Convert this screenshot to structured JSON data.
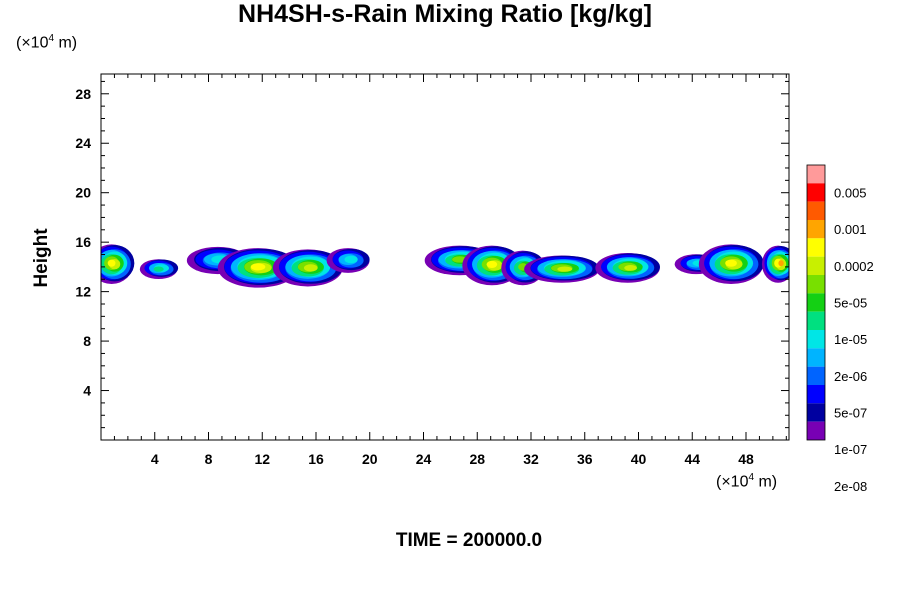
{
  "chart_data": {
    "type": "heatmap",
    "title": "NH4SH-s-Rain Mixing Ratio [kg/kg]",
    "ylabel": "Height",
    "x_unit": {
      "prefix": "(×10",
      "exp": "4",
      "suffix": " m)"
    },
    "y_unit": {
      "prefix": "(×10",
      "exp": "4",
      "suffix": " m)"
    },
    "xlim": [
      0,
      51.2
    ],
    "ylim": [
      0,
      29.6
    ],
    "x_ticks": [
      4,
      8,
      12,
      16,
      20,
      24,
      28,
      32,
      36,
      40,
      44,
      48
    ],
    "y_ticks": [
      4,
      8,
      12,
      16,
      20,
      24,
      28
    ],
    "colorbar": {
      "labels": [
        "0.005",
        "0.001",
        "0.0002",
        "5e-05",
        "1e-05",
        "2e-06",
        "5e-07",
        "1e-07",
        "2e-08"
      ],
      "colors": [
        "#ff9a9a",
        "#ff0000",
        "#ff5a00",
        "#ffa500",
        "#ffff00",
        "#c8f000",
        "#78e000",
        "#14d014",
        "#00e080",
        "#00e6e6",
        "#00b4ff",
        "#0064ff",
        "#0000ff",
        "#0000a0",
        "#7800b4"
      ]
    },
    "cloud_blobs": [
      {
        "x": 0.9,
        "y": 14.3,
        "rx": 1.6,
        "ry": 1.6,
        "level": 11
      },
      {
        "x": 4.4,
        "y": 13.9,
        "rx": 1.4,
        "ry": 0.8,
        "level": 7
      },
      {
        "x": 8.8,
        "y": 14.6,
        "rx": 2.3,
        "ry": 1.1,
        "level": 6
      },
      {
        "x": 11.8,
        "y": 14.0,
        "rx": 3.0,
        "ry": 1.6,
        "level": 11
      },
      {
        "x": 15.5,
        "y": 14.0,
        "rx": 2.6,
        "ry": 1.5,
        "level": 10
      },
      {
        "x": 18.5,
        "y": 14.6,
        "rx": 1.6,
        "ry": 1.0,
        "level": 6
      },
      {
        "x": 26.8,
        "y": 14.6,
        "rx": 2.6,
        "ry": 1.2,
        "level": 9
      },
      {
        "x": 29.2,
        "y": 14.2,
        "rx": 2.2,
        "ry": 1.6,
        "level": 11
      },
      {
        "x": 31.5,
        "y": 14.0,
        "rx": 1.6,
        "ry": 1.4,
        "level": 9
      },
      {
        "x": 34.4,
        "y": 13.9,
        "rx": 2.8,
        "ry": 1.1,
        "level": 10
      },
      {
        "x": 39.3,
        "y": 14.0,
        "rx": 2.4,
        "ry": 1.2,
        "level": 10
      },
      {
        "x": 44.4,
        "y": 14.3,
        "rx": 1.6,
        "ry": 0.8,
        "level": 6
      },
      {
        "x": 47.0,
        "y": 14.3,
        "rx": 2.4,
        "ry": 1.6,
        "level": 11
      },
      {
        "x": 50.5,
        "y": 14.3,
        "rx": 1.2,
        "ry": 1.5,
        "level": 12
      }
    ]
  },
  "footer": {
    "time_label": "TIME = 200000.0"
  }
}
